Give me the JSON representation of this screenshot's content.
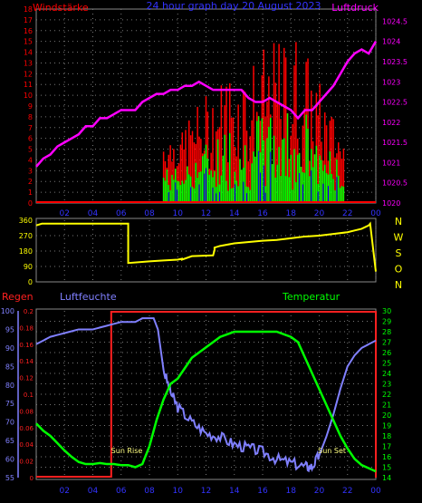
{
  "chart_data": [
    {
      "type": "line",
      "title": "24 hour graph day  20 August 2023",
      "ylabel_left": "Windstärke",
      "ylabel_right": "Luftdruck",
      "x_ticks": [
        "02",
        "04",
        "06",
        "08",
        "10",
        "12",
        "14",
        "16",
        "18",
        "20",
        "22",
        "00"
      ],
      "y_left_ticks": [
        "0",
        "1",
        "2",
        "3",
        "4",
        "5",
        "6",
        "7",
        "8",
        "9",
        "10",
        "11",
        "12",
        "13",
        "14",
        "15",
        "16",
        "17",
        "18"
      ],
      "y_right_ticks": [
        "1020",
        "1020.5",
        "1021",
        "1021.5",
        "1022",
        "1022.5",
        "1023",
        "1023.5",
        "1024",
        "1024.5"
      ],
      "ylim_left": [
        0,
        18
      ],
      "ylim_right": [
        1020,
        1024.8
      ],
      "xlim_hours": [
        0,
        24
      ],
      "grid": true,
      "colors": {
        "gust": "#ff0000",
        "wind": "#00ff00",
        "avg": "#0000ff",
        "pressure": "#ff00ff",
        "title": "#3333ff"
      },
      "series": [
        {
          "name": "Luftdruck",
          "axis": "right",
          "color": "#ff00ff",
          "x": [
            0,
            0.5,
            1,
            1.5,
            2,
            2.5,
            3,
            3.5,
            4,
            4.5,
            5,
            5.5,
            6,
            6.5,
            7,
            7.5,
            8,
            8.5,
            9,
            9.5,
            10,
            10.5,
            11,
            11.5,
            12,
            12.5,
            13,
            13.5,
            14,
            14.5,
            15,
            15.5,
            16,
            16.5,
            17,
            17.5,
            18,
            18.5,
            19,
            19.5,
            20,
            20.5,
            21,
            21.5,
            22,
            22.5,
            23,
            23.5,
            24
          ],
          "y": [
            1020.9,
            1021.1,
            1021.2,
            1021.4,
            1021.5,
            1021.6,
            1021.7,
            1021.9,
            1021.9,
            1022.1,
            1022.1,
            1022.2,
            1022.3,
            1022.3,
            1022.3,
            1022.5,
            1022.6,
            1022.7,
            1022.7,
            1022.8,
            1022.8,
            1022.9,
            1022.9,
            1023.0,
            1022.9,
            1022.8,
            1022.8,
            1022.8,
            1022.8,
            1022.8,
            1022.6,
            1022.5,
            1022.5,
            1022.6,
            1022.5,
            1022.4,
            1022.3,
            1022.1,
            1022.3,
            1022.3,
            1022.5,
            1022.7,
            1022.9,
            1023.2,
            1023.5,
            1023.7,
            1023.8,
            1023.7,
            1024.0
          ]
        }
      ]
    },
    {
      "type": "line",
      "title": "",
      "y_ticks": [
        "0",
        "90",
        "180",
        "270",
        "360"
      ],
      "direction_labels": [
        "N",
        "W",
        "S",
        "O",
        "N"
      ],
      "ylim": [
        0,
        360
      ],
      "xlim_hours": [
        0,
        24
      ],
      "grid": true,
      "series": [
        {
          "name": "",
          "color": "#ffff00",
          "x": [
            0,
            0.4,
            1.0,
            2,
            4,
            6,
            6.5,
            6.5,
            8,
            9,
            10,
            10.3,
            10.3,
            11,
            12.5,
            12.6,
            12.6,
            13,
            14,
            16,
            17,
            18,
            19,
            20,
            21,
            22,
            22.5,
            23,
            23.5,
            23.6,
            23.6,
            24
          ],
          "y": [
            330,
            340,
            340,
            340,
            340,
            340,
            340,
            110,
            120,
            125,
            130,
            135,
            130,
            150,
            155,
            185,
            200,
            210,
            225,
            240,
            245,
            255,
            265,
            270,
            280,
            290,
            300,
            310,
            330,
            340,
            340,
            60
          ]
        }
      ]
    },
    {
      "type": "line",
      "title": "",
      "ylabel_left": "Regen",
      "ylabel_left2": "Luftfeuchte",
      "ylabel_right": "Temperatur",
      "x_ticks": [
        "02",
        "04",
        "06",
        "08",
        "10",
        "12",
        "14",
        "16",
        "18",
        "20",
        "22",
        "00"
      ],
      "y_humidity_ticks": [
        "55",
        "60",
        "65",
        "70",
        "75",
        "80",
        "85",
        "90",
        "95",
        "100"
      ],
      "y_rain_ticks": [
        "0",
        "0.02",
        "0.04",
        "0.06",
        "0.08",
        "0.1",
        "0.12",
        "0.14",
        "0.16",
        "0.18",
        "0.2"
      ],
      "y_temp_ticks": [
        "14",
        "15",
        "16",
        "17",
        "18",
        "19",
        "20",
        "21",
        "22",
        "23",
        "24",
        "25",
        "26",
        "27",
        "28",
        "29",
        "30"
      ],
      "ylim_humidity": [
        55,
        100
      ],
      "ylim_rain": [
        0,
        0.2
      ],
      "ylim_temp": [
        14,
        30
      ],
      "xlim_hours": [
        0,
        24
      ],
      "grid": true,
      "annotations": [
        {
          "text": "Sun Rise",
          "hour": 6.4
        },
        {
          "text": "Sun Set",
          "hour": 20.9
        }
      ],
      "series": [
        {
          "name": "Luftfeuchte",
          "axis": "humidity",
          "color": "#8080ff",
          "x": [
            0,
            0.5,
            1,
            2,
            3,
            4,
            5,
            6,
            7,
            7.5,
            8,
            8.3,
            8.6,
            9,
            9.5,
            10,
            11,
            12,
            13,
            14,
            15,
            16,
            17,
            18,
            19,
            19.5,
            20,
            20.5,
            21,
            21.5,
            22,
            22.5,
            23,
            23.5,
            24
          ],
          "y": [
            91,
            92,
            93,
            94,
            95,
            95,
            96,
            97,
            97,
            98,
            98,
            98,
            95,
            84,
            78,
            74,
            70,
            67,
            66,
            64,
            63,
            62,
            60,
            59,
            58,
            58,
            61,
            66,
            72,
            79,
            85,
            88,
            90,
            91,
            92
          ]
        },
        {
          "name": "Temperatur",
          "axis": "temp",
          "color": "#00ff00",
          "x": [
            0,
            0.5,
            1,
            1.5,
            2,
            2.5,
            3,
            3.5,
            4,
            4.5,
            5,
            5.5,
            6,
            6.5,
            7,
            7.5,
            8,
            8.5,
            9,
            9.5,
            10,
            10.5,
            11,
            12,
            13,
            14,
            15,
            16,
            17,
            18,
            18.5,
            19,
            19.5,
            20,
            20.5,
            21,
            21.5,
            22,
            22.5,
            23,
            23.5,
            24
          ],
          "y": [
            19.2,
            18.5,
            18.0,
            17.3,
            16.6,
            16.0,
            15.5,
            15.3,
            15.3,
            15.4,
            15.3,
            15.3,
            15.2,
            15.2,
            15.0,
            15.3,
            17.0,
            19.5,
            21.5,
            23.0,
            23.5,
            24.5,
            25.5,
            26.5,
            27.5,
            28.0,
            28.0,
            28.0,
            28.0,
            27.5,
            27.0,
            25.5,
            24.0,
            22.5,
            21.0,
            19.5,
            18.0,
            16.8,
            15.8,
            15.2,
            14.9,
            14.6
          ]
        },
        {
          "name": "Regen",
          "axis": "rain",
          "color": "#ff2020",
          "x": [
            0,
            5.3,
            5.3,
            24
          ],
          "y": [
            0,
            0,
            0.2,
            0.2
          ]
        }
      ]
    }
  ]
}
